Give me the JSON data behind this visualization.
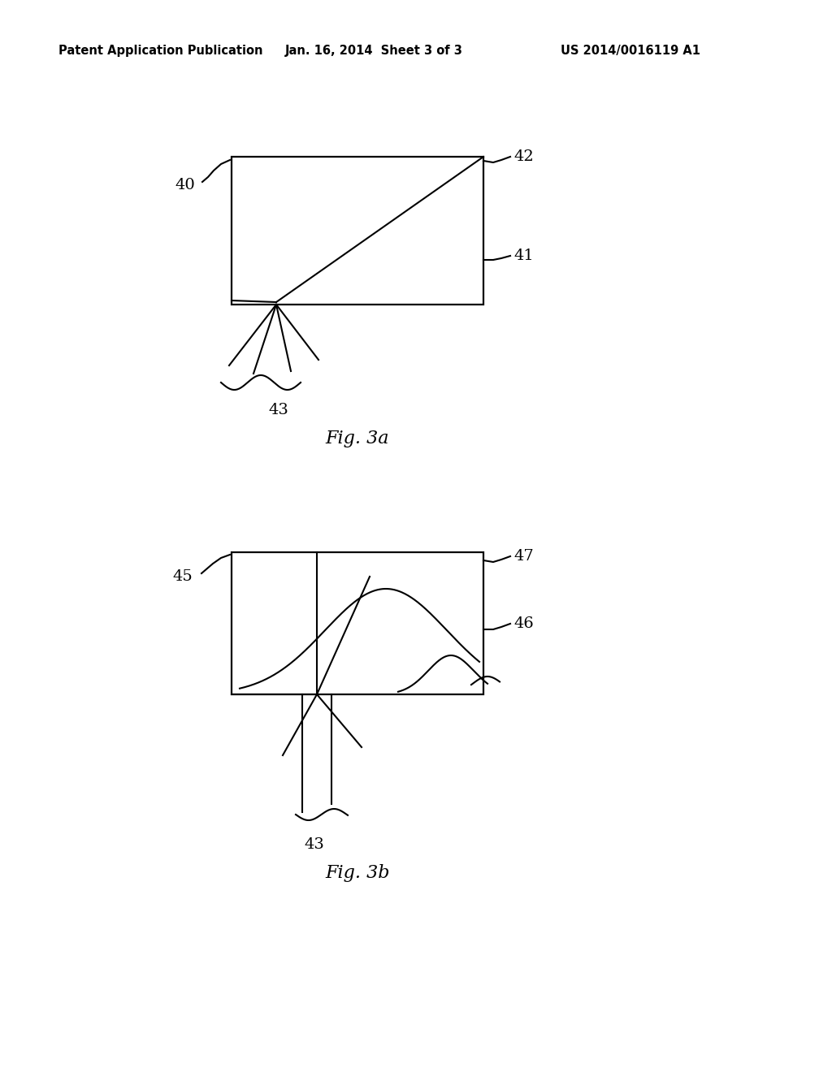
{
  "bg_color": "#ffffff",
  "header_left": "Patent Application Publication",
  "header_center": "Jan. 16, 2014  Sheet 3 of 3",
  "header_right": "US 2014/0016119 A1",
  "fig3a_label": "Fig. 3a",
  "fig3b_label": "Fig. 3b",
  "label_40": "40",
  "label_41": "41",
  "label_42": "42",
  "label_43a": "43",
  "label_45": "45",
  "label_46": "46",
  "label_47": "47",
  "label_43b": "43"
}
